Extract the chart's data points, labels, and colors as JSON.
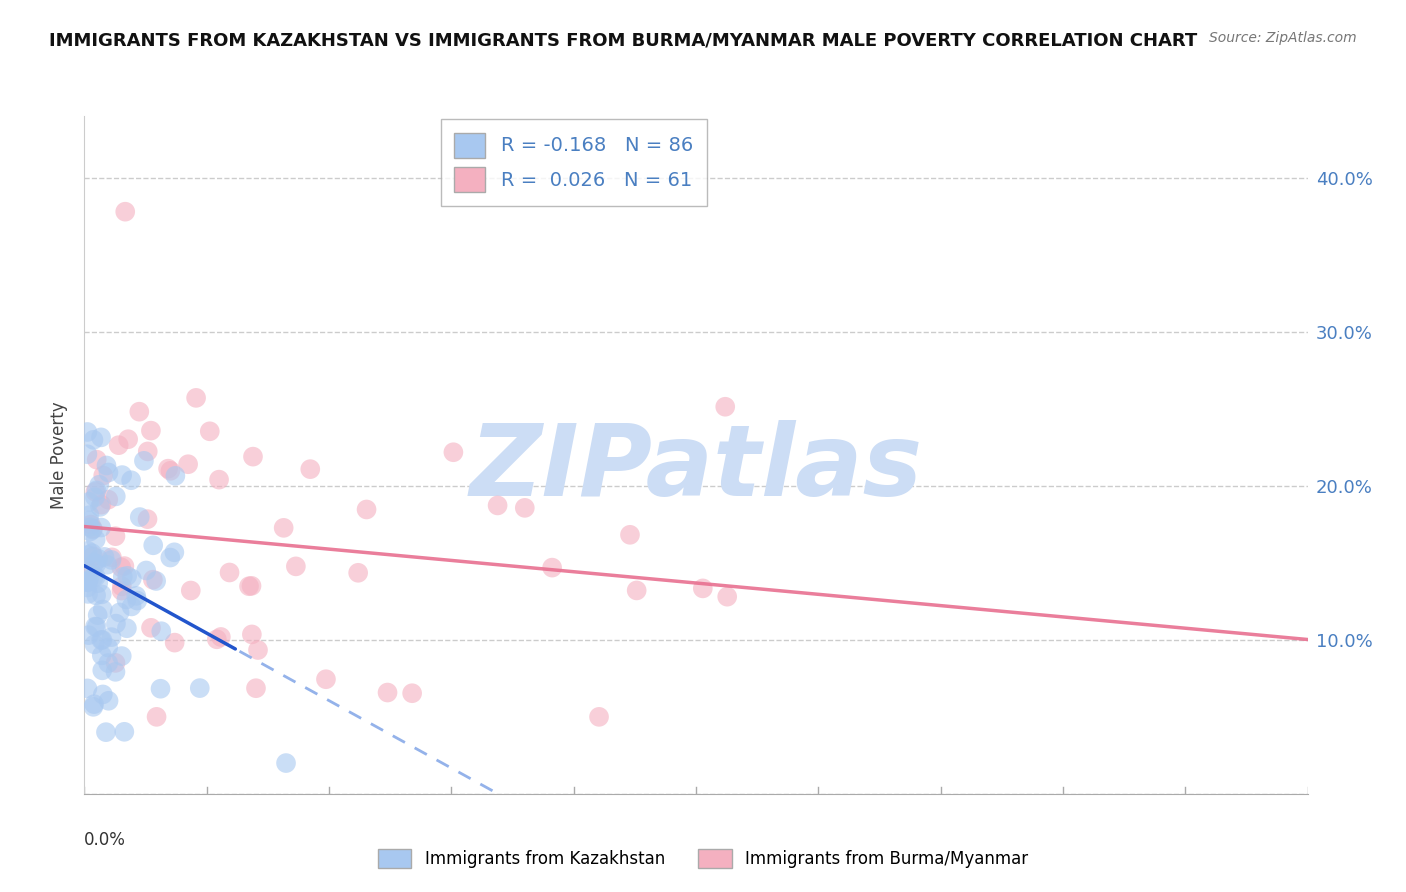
{
  "title": "IMMIGRANTS FROM KAZAKHSTAN VS IMMIGRANTS FROM BURMA/MYANMAR MALE POVERTY CORRELATION CHART",
  "source": "Source: ZipAtlas.com",
  "ylabel": "Male Poverty",
  "y_ticks": [
    0.0,
    0.1,
    0.2,
    0.3,
    0.4
  ],
  "y_tick_labels": [
    "",
    "10.0%",
    "20.0%",
    "30.0%",
    "40.0%"
  ],
  "x_lim": [
    0.0,
    0.2
  ],
  "y_lim": [
    0.0,
    0.44
  ],
  "color_kazakhstan": "#a8c8f0",
  "color_burma": "#f4b0c0",
  "color_kazakhstan_line_solid": "#2255cc",
  "color_kazakhstan_line_dash": "#88aae8",
  "color_burma_line": "#e87090",
  "watermark_color": "#ccddf5",
  "r_kaz": -0.168,
  "n_kaz": 86,
  "r_bur": 0.026,
  "n_bur": 61,
  "kaz_seed": 77,
  "bur_seed": 42
}
